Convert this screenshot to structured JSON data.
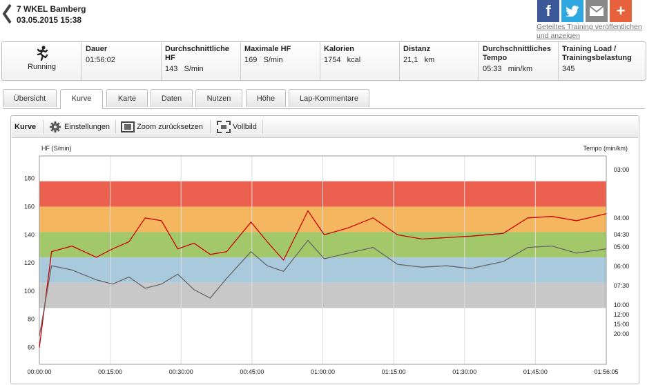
{
  "header": {
    "title": "7 WKEL Bamberg",
    "datetime": "03.05.2015 15:38"
  },
  "share": {
    "icons": [
      "facebook-icon",
      "twitter-icon",
      "mail-icon",
      "plus-icon"
    ],
    "link_text": "Geteiltes Training veröffentlichen und anzeigen"
  },
  "sport": {
    "label": "Running",
    "icon": "runner-icon"
  },
  "stats": [
    {
      "label": "Dauer",
      "value": "01:56:02"
    },
    {
      "label": "Durchschnittliche HF",
      "value": "143   S/min"
    },
    {
      "label": "Maximale HF",
      "value": "169   S/min"
    },
    {
      "label": "Kalorien",
      "value": "1754   kcal"
    },
    {
      "label": "Distanz",
      "value": "21,1   km"
    },
    {
      "label": "Durchschnittliches Tempo",
      "value": "05:33   min/km"
    },
    {
      "label": "Training Load / Trainingsbelastung",
      "value": "345"
    }
  ],
  "tabs": [
    "Übersicht",
    "Kurve",
    "Karte",
    "Daten",
    "Nutzen",
    "Höhe",
    "Lap-Kommentare"
  ],
  "active_tab": "Kurve",
  "toolbar": {
    "title": "Kurve",
    "settings": "Einstellungen",
    "zoom_reset": "Zoom zurücksetzen",
    "fullscreen": "Vollbild"
  },
  "chart_data": {
    "type": "line",
    "ylabel_left": "HF (S/min)",
    "ylabel_right": "Tempo (min/km)",
    "y_ticks_left": [
      "180",
      "160",
      "140",
      "120",
      "100",
      "80",
      "60"
    ],
    "y_ticks_right": [
      "03:00",
      "04:00",
      "04:30",
      "05:00",
      "06:00",
      "07:30",
      "10:00",
      "12:00",
      "15:00",
      "20:00"
    ],
    "x_ticks": [
      "00:00:00",
      "00:15:00",
      "00:30:00",
      "00:45:00",
      "01:00:00",
      "01:15:00",
      "01:30:00",
      "01:45:00",
      "01:56:05"
    ],
    "xlim_seconds": [
      0,
      6965
    ],
    "ylim_left": [
      48,
      196
    ],
    "zones": [
      {
        "from": 88,
        "to": 106,
        "color": "#c8c8c8"
      },
      {
        "from": 106,
        "to": 124,
        "color": "#a9c9dc"
      },
      {
        "from": 124,
        "to": 142,
        "color": "#a3c86a"
      },
      {
        "from": 142,
        "to": 160,
        "color": "#f4b65e"
      },
      {
        "from": 160,
        "to": 178,
        "color": "#ec6050"
      }
    ],
    "series": [
      {
        "color": "#cc0000",
        "values": [
          [
            0,
            60
          ],
          [
            150,
            128
          ],
          [
            400,
            132
          ],
          [
            700,
            124
          ],
          [
            900,
            130
          ],
          [
            1100,
            135
          ],
          [
            1300,
            152
          ],
          [
            1500,
            150
          ],
          [
            1700,
            130
          ],
          [
            1900,
            134
          ],
          [
            2100,
            126
          ],
          [
            2300,
            128
          ],
          [
            2600,
            149
          ],
          [
            2800,
            135
          ],
          [
            3000,
            122
          ],
          [
            3300,
            157
          ],
          [
            3500,
            140
          ],
          [
            3800,
            145
          ],
          [
            4100,
            152
          ],
          [
            4400,
            140
          ],
          [
            4700,
            137
          ],
          [
            5000,
            138
          ],
          [
            5300,
            139
          ],
          [
            5700,
            141
          ],
          [
            6000,
            152
          ],
          [
            6300,
            153
          ],
          [
            6600,
            150
          ],
          [
            6965,
            155
          ]
        ]
      },
      {
        "color": "#666666",
        "values": [
          [
            0,
            68
          ],
          [
            150,
            118
          ],
          [
            400,
            115
          ],
          [
            700,
            108
          ],
          [
            900,
            105
          ],
          [
            1100,
            110
          ],
          [
            1300,
            102
          ],
          [
            1500,
            105
          ],
          [
            1700,
            112
          ],
          [
            1900,
            101
          ],
          [
            2100,
            95
          ],
          [
            2300,
            109
          ],
          [
            2600,
            128
          ],
          [
            2800,
            118
          ],
          [
            3000,
            114
          ],
          [
            3300,
            136
          ],
          [
            3500,
            123
          ],
          [
            3800,
            127
          ],
          [
            4100,
            131
          ],
          [
            4400,
            119
          ],
          [
            4700,
            117
          ],
          [
            5000,
            118
          ],
          [
            5300,
            116
          ],
          [
            5700,
            121
          ],
          [
            6000,
            131
          ],
          [
            6300,
            132
          ],
          [
            6600,
            127
          ],
          [
            6965,
            130
          ]
        ]
      }
    ]
  }
}
